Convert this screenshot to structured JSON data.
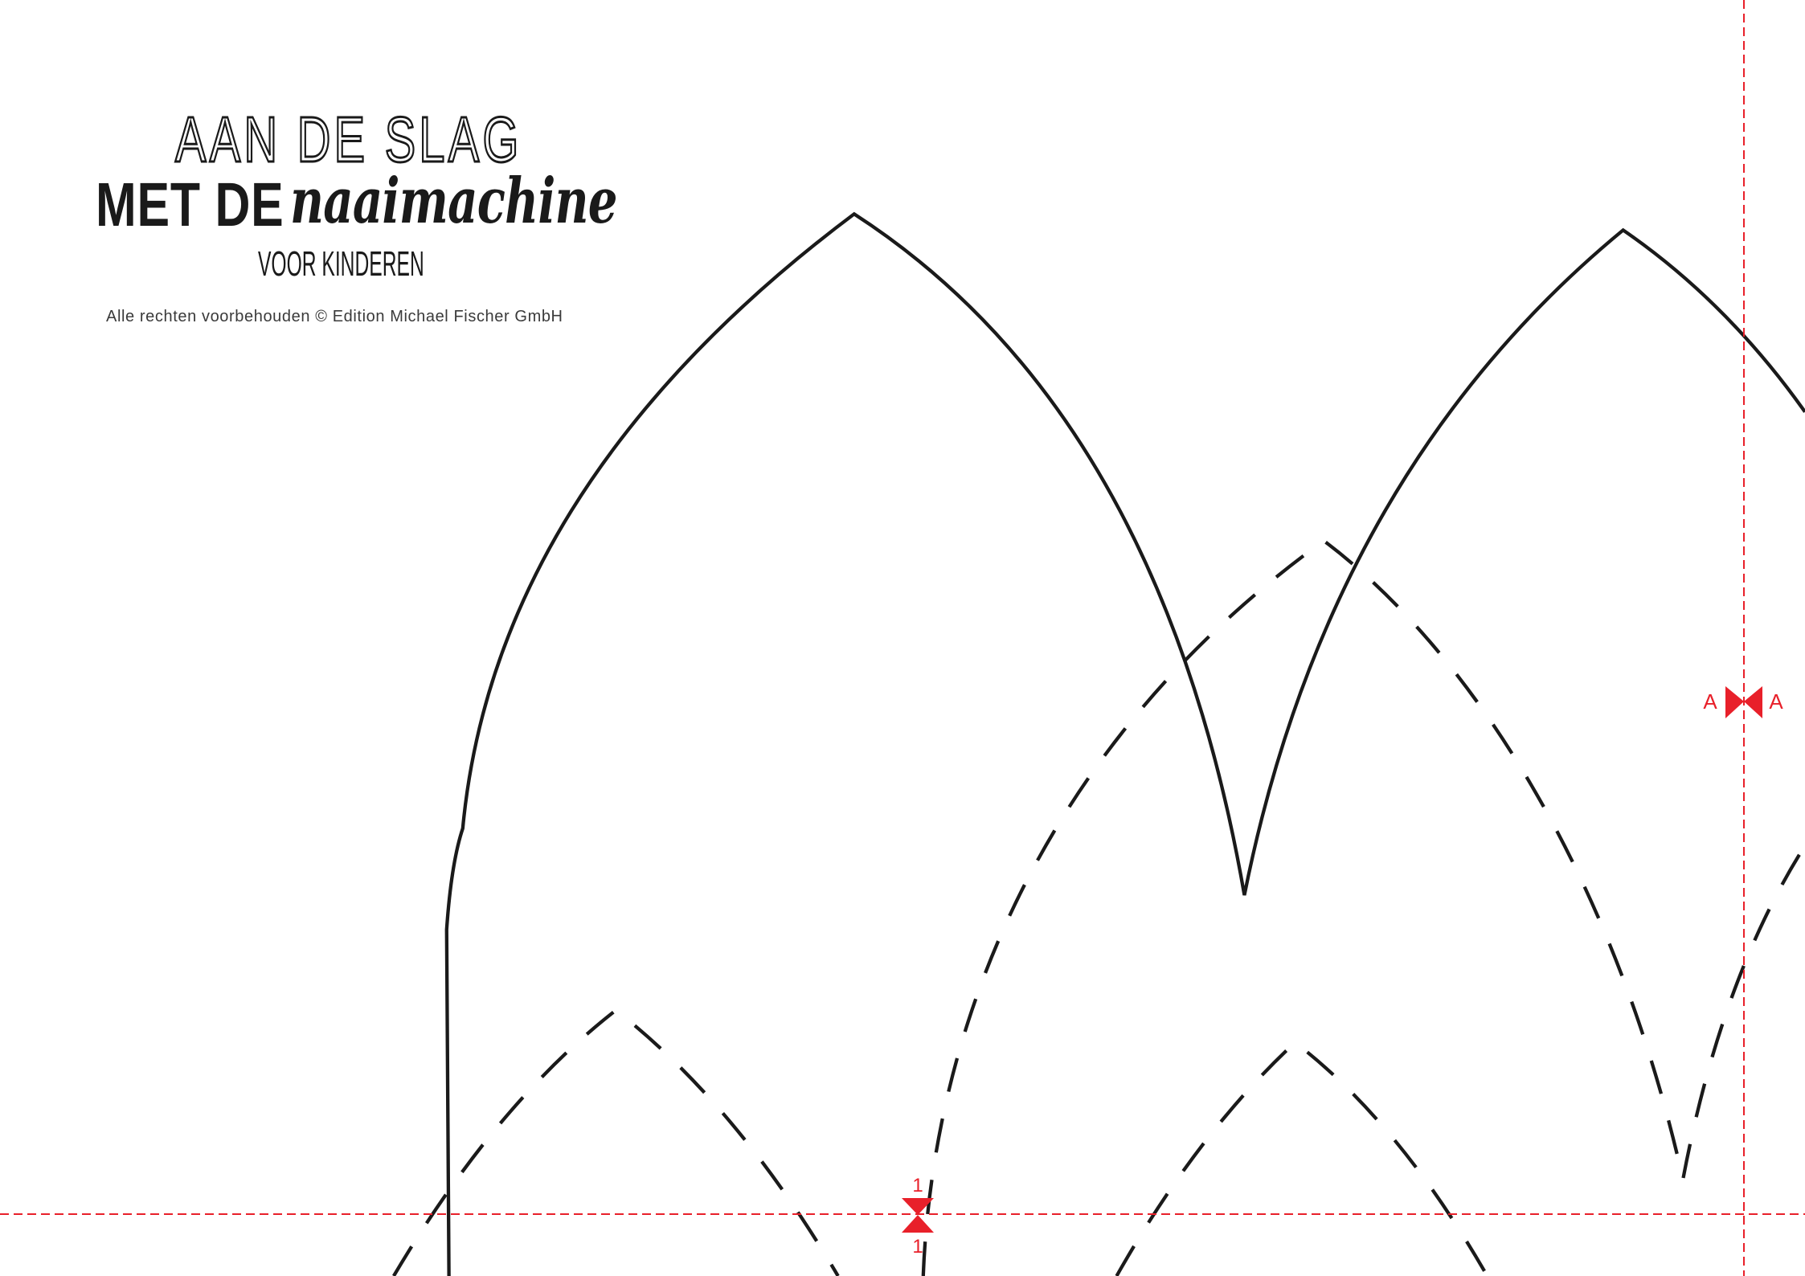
{
  "header": {
    "title_line1": "AAN DE SLAG",
    "title_line2_bold": "MET DE",
    "title_line2_script": "naaimachine",
    "subtitle": "VOOR KINDEREN",
    "copyright": "Alle rechten voorbehouden © Edition Michael Fischer GmbH"
  },
  "markers": {
    "a_left": "A",
    "a_right": "A",
    "one_top": "1",
    "one_bottom": "1"
  },
  "colors": {
    "pattern_line": "#1a1a1a",
    "guide_line": "#e8202a",
    "background": "#ffffff"
  }
}
